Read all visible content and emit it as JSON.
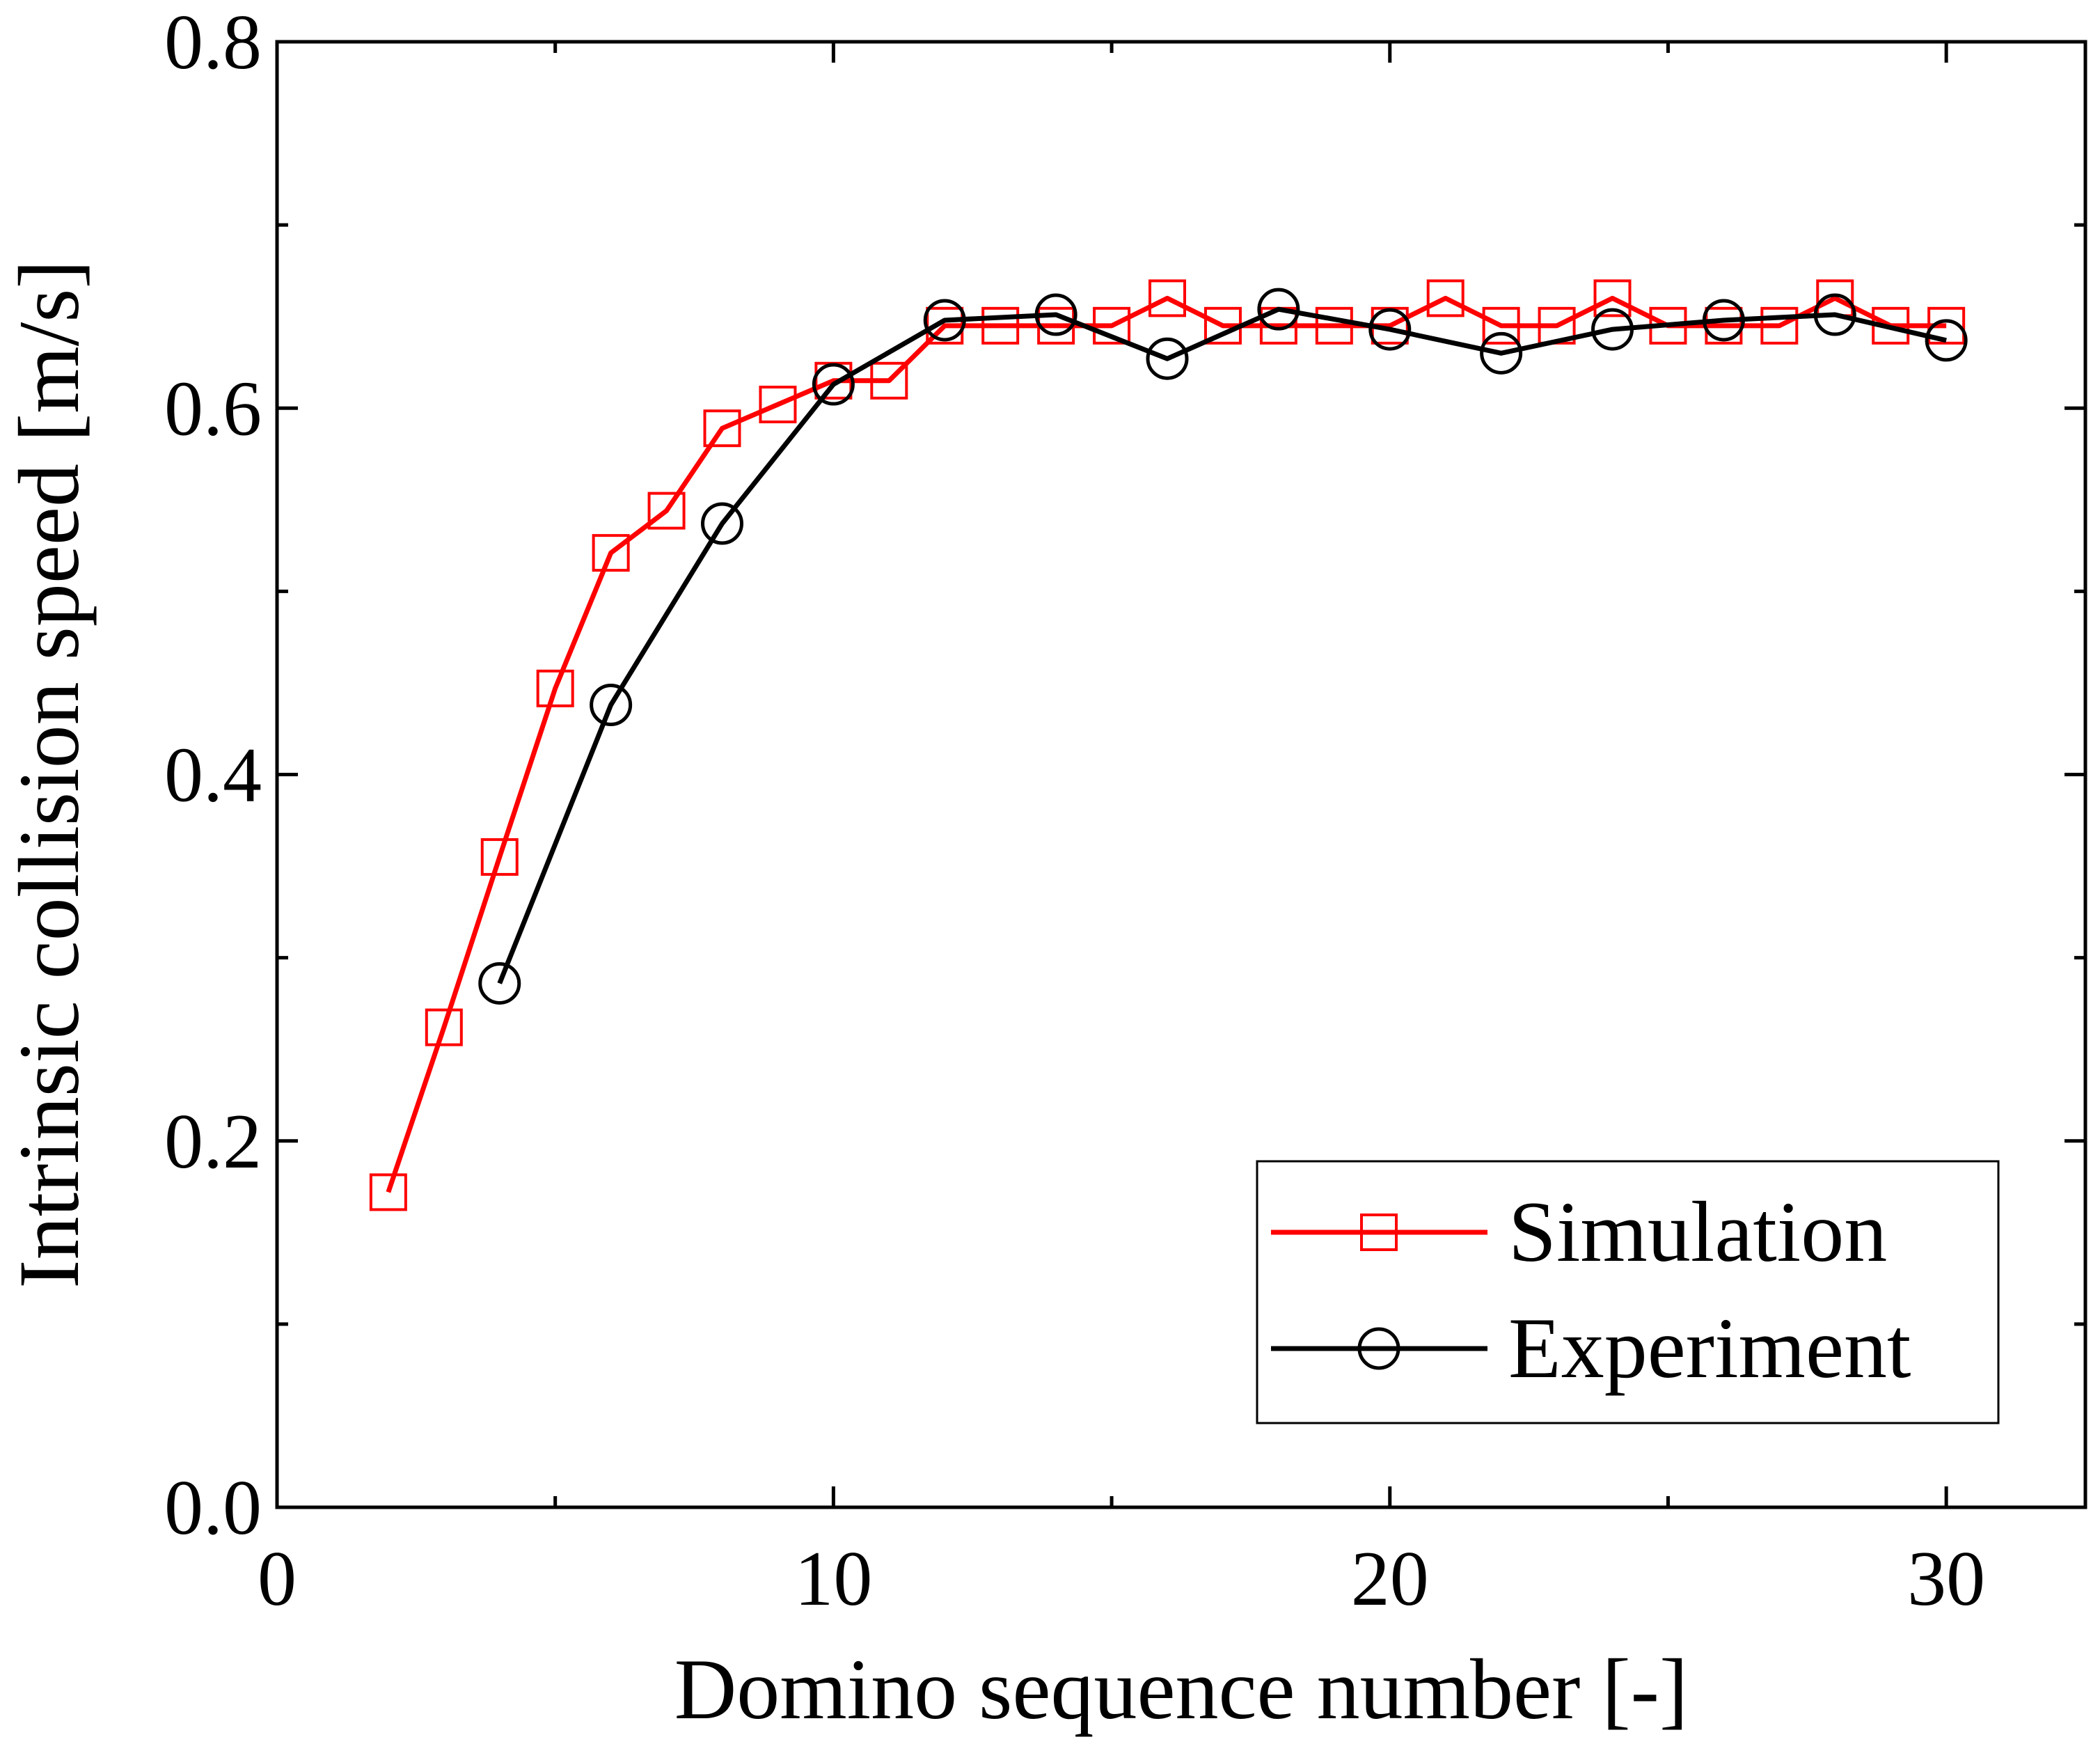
{
  "chart_data": {
    "type": "line",
    "title": "",
    "xlabel": "Domino sequence number [-]",
    "ylabel": "Intrinsic collision speed [m/s]",
    "xlim": [
      0,
      32.5
    ],
    "ylim": [
      0.0,
      0.8
    ],
    "x_ticks": [
      0,
      10,
      20,
      30
    ],
    "x_tick_labels": [
      "0",
      "10",
      "20",
      "30"
    ],
    "y_ticks": [
      0.0,
      0.2,
      0.4,
      0.6,
      0.8
    ],
    "y_tick_labels": [
      "0.0",
      "0.2",
      "0.4",
      "0.6",
      "0.8"
    ],
    "grid": false,
    "legend_position": "bottom-right",
    "series": [
      {
        "name": "Simulation",
        "color": "#ff0000",
        "marker": "square",
        "x": [
          2,
          3,
          4,
          5,
          6,
          7,
          8,
          9,
          10,
          11,
          12,
          13,
          14,
          15,
          16,
          17,
          18,
          19,
          20,
          21,
          22,
          23,
          24,
          25,
          26,
          27,
          28,
          29,
          30
        ],
        "y": [
          0.172,
          0.262,
          0.355,
          0.447,
          0.521,
          0.544,
          0.589,
          0.602,
          0.615,
          0.615,
          0.645,
          0.645,
          0.645,
          0.645,
          0.66,
          0.645,
          0.645,
          0.645,
          0.645,
          0.66,
          0.645,
          0.645,
          0.66,
          0.645,
          0.645,
          0.645,
          0.66,
          0.645,
          0.645
        ]
      },
      {
        "name": "Experiment",
        "color": "#000000",
        "marker": "circle",
        "x": [
          4,
          6,
          8,
          10,
          12,
          14,
          16,
          18,
          20,
          22,
          24,
          26,
          28,
          30
        ],
        "y": [
          0.286,
          0.438,
          0.537,
          0.613,
          0.648,
          0.651,
          0.627,
          0.654,
          0.643,
          0.63,
          0.643,
          0.648,
          0.651,
          0.637
        ]
      }
    ]
  }
}
